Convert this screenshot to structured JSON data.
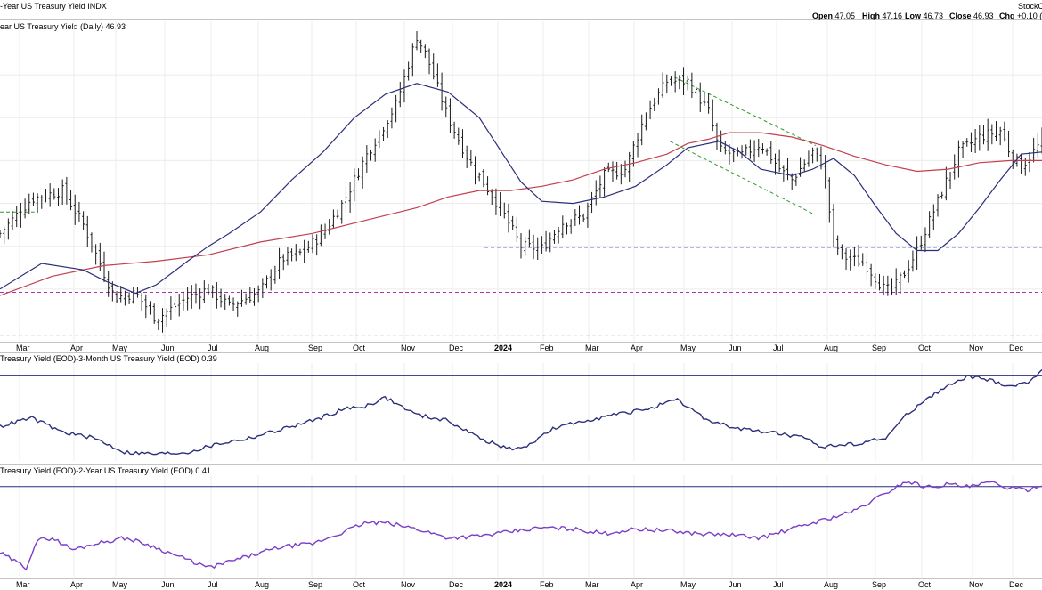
{
  "header": {
    "symbol_title": "-Year US Treasury Yield INDX",
    "watermark": "StockC",
    "ohlc": [
      {
        "label": "Open",
        "value": "47.05"
      },
      {
        "label": "High",
        "value": "47.16"
      },
      {
        "label": "Low",
        "value": "46.73"
      },
      {
        "label": "Close",
        "value": "46.93"
      },
      {
        "label": "Chg",
        "value": "+0.10 ("
      }
    ]
  },
  "chart_data": [
    {
      "type": "bar",
      "title": "ear US Treasury Yield (Daily) 46.93",
      "style": "ohlc",
      "months": [
        "Mar",
        "Apr",
        "May",
        "Jun",
        "Jul",
        "Aug",
        "Sep",
        "Oct",
        "Nov",
        "Dec",
        "2024",
        "Feb",
        "Mar",
        "Apr",
        "May",
        "Jun",
        "Jul",
        "Aug",
        "Sep",
        "Oct",
        "Nov",
        "Dec"
      ],
      "ylim": [
        36.5,
        51.5
      ],
      "grid": true,
      "price_path": [
        [
          0,
          41.6
        ],
        [
          3,
          43.2
        ],
        [
          6,
          43.6
        ],
        [
          8,
          42.0
        ],
        [
          11,
          38.6
        ],
        [
          13,
          38.8
        ],
        [
          15,
          37.6
        ],
        [
          18,
          38.6
        ],
        [
          20,
          39.0
        ],
        [
          22,
          38.2
        ],
        [
          25,
          38.9
        ],
        [
          27,
          40.4
        ],
        [
          29,
          40.7
        ],
        [
          31,
          41.6
        ],
        [
          33,
          43.1
        ],
        [
          35,
          45.1
        ],
        [
          38,
          47.6
        ],
        [
          40,
          50.8
        ],
        [
          41,
          49.8
        ],
        [
          43,
          47.0
        ],
        [
          45,
          45.0
        ],
        [
          48,
          42.8
        ],
        [
          50,
          41.0
        ],
        [
          52,
          40.9
        ],
        [
          54,
          42.1
        ],
        [
          56,
          42.4
        ],
        [
          58,
          44.3
        ],
        [
          60,
          44.6
        ],
        [
          62,
          47.2
        ],
        [
          64,
          48.7
        ],
        [
          66,
          48.7
        ],
        [
          68,
          47.3
        ],
        [
          69,
          45.5
        ],
        [
          71,
          45.2
        ],
        [
          73,
          45.8
        ],
        [
          75,
          44.5
        ],
        [
          76,
          44.1
        ],
        [
          78,
          45.4
        ],
        [
          79,
          44.8
        ],
        [
          80,
          41.2
        ],
        [
          81,
          40.5
        ],
        [
          83,
          40.2
        ],
        [
          85,
          38.9
        ],
        [
          86,
          39.2
        ],
        [
          87,
          39.9
        ],
        [
          88,
          40.8
        ],
        [
          90,
          43.1
        ],
        [
          92,
          45.4
        ],
        [
          94,
          46.1
        ],
        [
          96,
          46.4
        ],
        [
          97,
          45.3
        ],
        [
          98,
          44.7
        ],
        [
          99,
          45.3
        ],
        [
          100,
          45.9
        ]
      ],
      "ma_50_path": [
        [
          0,
          39.0
        ],
        [
          4,
          40.2
        ],
        [
          8,
          39.9
        ],
        [
          10,
          39.4
        ],
        [
          13,
          38.8
        ],
        [
          15,
          39.2
        ],
        [
          18,
          40.3
        ],
        [
          20,
          41.0
        ],
        [
          22,
          41.6
        ],
        [
          25,
          42.6
        ],
        [
          28,
          44.1
        ],
        [
          31,
          45.4
        ],
        [
          34,
          47.0
        ],
        [
          37,
          48.1
        ],
        [
          40,
          48.6
        ],
        [
          43,
          48.2
        ],
        [
          46,
          47.0
        ],
        [
          48,
          45.5
        ],
        [
          50,
          44.0
        ],
        [
          52,
          43.1
        ],
        [
          55,
          43.0
        ],
        [
          58,
          43.3
        ],
        [
          61,
          43.8
        ],
        [
          64,
          44.8
        ],
        [
          66,
          45.6
        ],
        [
          69,
          45.9
        ],
        [
          71,
          45.4
        ],
        [
          73,
          44.6
        ],
        [
          76,
          44.3
        ],
        [
          78,
          44.6
        ],
        [
          80,
          45.1
        ],
        [
          82,
          44.3
        ],
        [
          84,
          42.9
        ],
        [
          86,
          41.6
        ],
        [
          88,
          40.8
        ],
        [
          90,
          40.8
        ],
        [
          92,
          41.6
        ],
        [
          94,
          42.8
        ],
        [
          96,
          44.1
        ],
        [
          98,
          45.3
        ],
        [
          100,
          45.4
        ]
      ],
      "ma_200_path": [
        [
          0,
          38.7
        ],
        [
          5,
          39.6
        ],
        [
          10,
          40.1
        ],
        [
          15,
          40.3
        ],
        [
          20,
          40.6
        ],
        [
          25,
          41.2
        ],
        [
          30,
          41.6
        ],
        [
          35,
          42.2
        ],
        [
          40,
          42.8
        ],
        [
          43,
          43.3
        ],
        [
          46,
          43.6
        ],
        [
          49,
          43.6
        ],
        [
          52,
          43.8
        ],
        [
          55,
          44.1
        ],
        [
          58,
          44.6
        ],
        [
          61,
          44.9
        ],
        [
          64,
          45.3
        ],
        [
          66,
          45.8
        ],
        [
          68,
          46.0
        ],
        [
          70,
          46.3
        ],
        [
          73,
          46.3
        ],
        [
          76,
          46.1
        ],
        [
          79,
          45.7
        ],
        [
          82,
          45.2
        ],
        [
          85,
          44.8
        ],
        [
          88,
          44.5
        ],
        [
          91,
          44.6
        ],
        [
          94,
          44.9
        ],
        [
          97,
          45.0
        ],
        [
          100,
          45.0
        ]
      ],
      "trendlines": [
        {
          "name": "upper-channel",
          "style": "dashed",
          "color": "#2c9a2c",
          "from": [
            64.7,
            48.9
          ],
          "to": [
            78.3,
            45.7
          ]
        },
        {
          "name": "lower-channel",
          "style": "dashed",
          "color": "#2c9a2c",
          "from": [
            64.3,
            45.9
          ],
          "to": [
            78.1,
            42.5
          ]
        },
        {
          "name": "support",
          "style": "dashed",
          "color": "#2f3fbf",
          "from": [
            46.5,
            40.95
          ],
          "to": [
            100,
            40.95
          ]
        },
        {
          "name": "upper-magenta",
          "style": "dashed",
          "color": "#b030b0",
          "from": [
            0,
            38.85
          ],
          "to": [
            100,
            38.85
          ]
        },
        {
          "name": "lower-magenta",
          "style": "dashed",
          "color": "#b030b0",
          "from": [
            0,
            36.85
          ],
          "to": [
            100,
            36.85
          ]
        },
        {
          "name": "left-green",
          "style": "dashed",
          "color": "#2c9a2c",
          "from": [
            0,
            42.6
          ],
          "to": [
            3.3,
            42.6
          ]
        }
      ],
      "colors": {
        "bars": "#1a1a1a",
        "ma_50": "#2b2f7a",
        "ma_200": "#c2404f"
      }
    },
    {
      "type": "line",
      "title": "Treasury Yield (EOD)-3-Month US Treasury Yield (EOD) 0.39",
      "color": "#2b2f7a",
      "reference_line": 0.39,
      "path": [
        [
          0,
          -0.5
        ],
        [
          3,
          -0.35
        ],
        [
          6,
          -0.6
        ],
        [
          9,
          -0.7
        ],
        [
          12,
          -0.95
        ],
        [
          15,
          -0.98
        ],
        [
          18,
          -0.95
        ],
        [
          21,
          -0.8
        ],
        [
          24,
          -0.7
        ],
        [
          27,
          -0.55
        ],
        [
          30,
          -0.4
        ],
        [
          33,
          -0.2
        ],
        [
          35,
          -0.15
        ],
        [
          37,
          0.0
        ],
        [
          40,
          -0.3
        ],
        [
          43,
          -0.4
        ],
        [
          46,
          -0.7
        ],
        [
          48,
          -0.85
        ],
        [
          50,
          -0.9
        ],
        [
          53,
          -0.55
        ],
        [
          56,
          -0.4
        ],
        [
          59,
          -0.3
        ],
        [
          62,
          -0.2
        ],
        [
          65,
          -0.05
        ],
        [
          68,
          -0.4
        ],
        [
          71,
          -0.55
        ],
        [
          74,
          -0.6
        ],
        [
          77,
          -0.7
        ],
        [
          79,
          -0.85
        ],
        [
          82,
          -0.8
        ],
        [
          85,
          -0.7
        ],
        [
          87,
          -0.3
        ],
        [
          89,
          0.0
        ],
        [
          91,
          0.2
        ],
        [
          93,
          0.37
        ],
        [
          95,
          0.3
        ],
        [
          97,
          0.2
        ],
        [
          98.5,
          0.25
        ],
        [
          100,
          0.48
        ]
      ],
      "ylim": [
        -1.1,
        0.6
      ]
    },
    {
      "type": "line",
      "title": "Treasury Yield (EOD)-2-Year US Treasury Yield (EOD) 0.41",
      "color": "#7a3ec9",
      "reference_line": 0.41,
      "path": [
        [
          0,
          -0.7
        ],
        [
          2.5,
          -0.95
        ],
        [
          3.5,
          -0.5
        ],
        [
          5,
          -0.45
        ],
        [
          7,
          -0.65
        ],
        [
          9,
          -0.55
        ],
        [
          12,
          -0.45
        ],
        [
          14,
          -0.55
        ],
        [
          17,
          -0.75
        ],
        [
          20,
          -0.95
        ],
        [
          22,
          -0.85
        ],
        [
          24,
          -0.75
        ],
        [
          27,
          -0.6
        ],
        [
          30,
          -0.55
        ],
        [
          33,
          -0.35
        ],
        [
          35,
          -0.2
        ],
        [
          37,
          -0.2
        ],
        [
          40,
          -0.3
        ],
        [
          43,
          -0.45
        ],
        [
          46,
          -0.42
        ],
        [
          49,
          -0.35
        ],
        [
          52,
          -0.28
        ],
        [
          55,
          -0.3
        ],
        [
          58,
          -0.38
        ],
        [
          61,
          -0.3
        ],
        [
          64,
          -0.33
        ],
        [
          67,
          -0.38
        ],
        [
          70,
          -0.4
        ],
        [
          73,
          -0.45
        ],
        [
          76,
          -0.3
        ],
        [
          79,
          -0.15
        ],
        [
          82,
          0.0
        ],
        [
          85,
          0.3
        ],
        [
          87,
          0.5
        ],
        [
          89,
          0.4
        ],
        [
          91,
          0.45
        ],
        [
          93,
          0.4
        ],
        [
          95,
          0.48
        ],
        [
          97,
          0.38
        ],
        [
          98.5,
          0.35
        ],
        [
          100,
          0.45
        ]
      ],
      "ylim": [
        -1.1,
        0.6
      ]
    }
  ]
}
